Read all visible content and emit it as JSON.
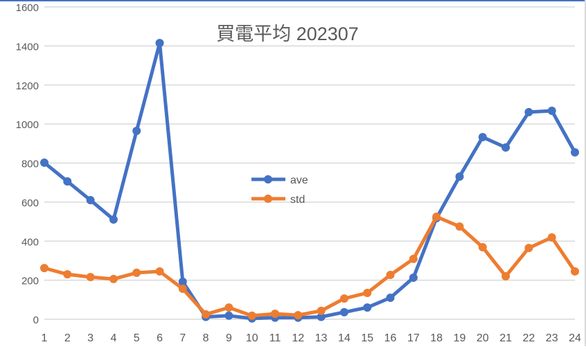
{
  "chart_data": {
    "type": "line",
    "title": "買電平均 202307",
    "xlabel": "",
    "ylabel": "",
    "ylim": [
      0,
      1600
    ],
    "yticks": [
      0,
      200,
      400,
      600,
      800,
      1000,
      1200,
      1400,
      1600
    ],
    "grid": true,
    "legend_position": "inside-center",
    "categories": [
      "1",
      "2",
      "3",
      "4",
      "5",
      "6",
      "7",
      "8",
      "9",
      "10",
      "11",
      "12",
      "13",
      "14",
      "15",
      "16",
      "17",
      "18",
      "19",
      "20",
      "21",
      "22",
      "23",
      "24"
    ],
    "series": [
      {
        "name": "ave",
        "color": "#4472c4",
        "values": [
          802,
          706,
          610,
          511,
          965,
          1415,
          192,
          12,
          18,
          4,
          8,
          8,
          12,
          36,
          60,
          110,
          213,
          518,
          731,
          933,
          880,
          1061,
          1068,
          855
        ]
      },
      {
        "name": "std",
        "color": "#ed7d31",
        "values": [
          262,
          230,
          216,
          206,
          238,
          245,
          156,
          25,
          60,
          18,
          28,
          21,
          43,
          106,
          135,
          227,
          309,
          525,
          475,
          369,
          220,
          365,
          419,
          245
        ]
      }
    ]
  },
  "colors": {
    "grid": "#d9d9d9",
    "axis_text": "#595959",
    "title_text": "#595959",
    "frame_top": "#4472c4"
  }
}
